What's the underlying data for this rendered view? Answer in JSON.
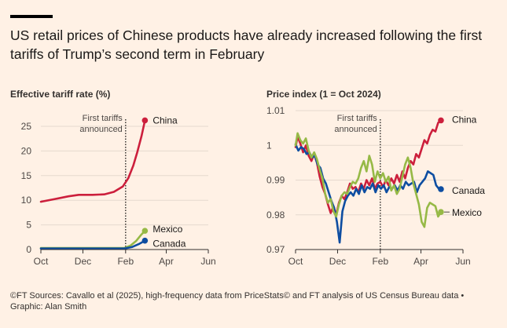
{
  "header": {
    "title": "US retail prices of Chinese products have already increased following the first tariffs of Trump’s second term in February"
  },
  "footer": {
    "source": "©FT Sources: Cavallo et al (2025), high-frequency data from PriceStats© and FT analysis of US Census Bureau data • Graphic: Alan Smith"
  },
  "colors": {
    "China": "#cc1f3c",
    "Mexico": "#96b946",
    "Canada": "#0d4da1",
    "grid": "#e6d9ce",
    "axis": "#33302e"
  },
  "chart_data": [
    {
      "type": "line",
      "title": "Effective tariff rate (%)",
      "x_ticks": [
        "Oct",
        "Dec",
        "Feb",
        "Apr",
        "Jun"
      ],
      "xlim": [
        "2024-10-01",
        "2025-06-01"
      ],
      "ylim": [
        0,
        27
      ],
      "y_ticks": [
        0,
        5,
        10,
        15,
        20,
        25
      ],
      "grid": true,
      "annotation": {
        "text": [
          "First tariffs",
          "announced"
        ],
        "date": "2025-02-01"
      },
      "series": [
        {
          "name": "China",
          "points": [
            [
              "2024-10-01",
              9.7
            ],
            [
              "2024-10-20",
              10.2
            ],
            [
              "2024-11-10",
              10.8
            ],
            [
              "2024-11-25",
              11.1
            ],
            [
              "2024-12-15",
              11.1
            ],
            [
              "2025-01-01",
              11.2
            ],
            [
              "2025-01-15",
              11.7
            ],
            [
              "2025-01-28",
              12.8
            ],
            [
              "2025-02-05",
              14.5
            ],
            [
              "2025-02-12",
              17.0
            ],
            [
              "2025-02-18",
              19.8
            ],
            [
              "2025-02-24",
              23.0
            ],
            [
              "2025-03-01",
              26.2
            ]
          ]
        },
        {
          "name": "Mexico",
          "points": [
            [
              "2024-10-01",
              0.3
            ],
            [
              "2025-01-30",
              0.3
            ],
            [
              "2025-02-08",
              0.8
            ],
            [
              "2025-02-16",
              1.7
            ],
            [
              "2025-02-23",
              2.9
            ],
            [
              "2025-03-01",
              3.8
            ]
          ]
        },
        {
          "name": "Canada",
          "points": [
            [
              "2024-10-01",
              0.2
            ],
            [
              "2025-01-30",
              0.2
            ],
            [
              "2025-02-10",
              0.5
            ],
            [
              "2025-02-20",
              1.1
            ],
            [
              "2025-03-01",
              1.8
            ]
          ]
        }
      ]
    },
    {
      "type": "line",
      "title": "Price index (1 = Oct 2024)",
      "x_ticks": [
        "Oct",
        "Dec",
        "Feb",
        "Apr",
        "Jun"
      ],
      "xlim": [
        "2024-10-01",
        "2025-06-01"
      ],
      "ylim": [
        0.97,
        1.01
      ],
      "y_ticks": [
        "0.97",
        "0.98",
        "0.99",
        "1",
        "1.01"
      ],
      "grid": true,
      "annotation": {
        "text": [
          "First tariffs",
          "announced"
        ],
        "date": "2025-02-01"
      },
      "series": [
        {
          "name": "China",
          "points": [
            [
              "2024-10-01",
              0.9995
            ],
            [
              "2024-10-04",
              1.0025
            ],
            [
              "2024-10-08",
              1.0005
            ],
            [
              "2024-10-12",
              0.998
            ],
            [
              "2024-10-16",
              1.0
            ],
            [
              "2024-10-20",
              0.997
            ],
            [
              "2024-10-24",
              0.9955
            ],
            [
              "2024-10-28",
              0.9975
            ],
            [
              "2024-11-01",
              0.995
            ],
            [
              "2024-11-05",
              0.991
            ],
            [
              "2024-11-09",
              0.988
            ],
            [
              "2024-11-13",
              0.986
            ],
            [
              "2024-11-17",
              0.983
            ],
            [
              "2024-11-21",
              0.9805
            ],
            [
              "2024-11-25",
              0.9825
            ],
            [
              "2024-11-29",
              0.98
            ],
            [
              "2024-12-03",
              0.9835
            ],
            [
              "2024-12-07",
              0.9855
            ],
            [
              "2024-12-11",
              0.9845
            ],
            [
              "2024-12-15",
              0.9865
            ],
            [
              "2024-12-19",
              0.989
            ],
            [
              "2024-12-23",
              0.9875
            ],
            [
              "2024-12-27",
              0.988
            ],
            [
              "2024-12-31",
              0.9865
            ],
            [
              "2025-01-04",
              0.989
            ],
            [
              "2025-01-08",
              0.9875
            ],
            [
              "2025-01-12",
              0.99
            ],
            [
              "2025-01-16",
              0.9885
            ],
            [
              "2025-01-20",
              0.9905
            ],
            [
              "2025-01-24",
              0.9875
            ],
            [
              "2025-01-28",
              0.989
            ],
            [
              "2025-02-01",
              0.9895
            ],
            [
              "2025-02-05",
              0.988
            ],
            [
              "2025-02-09",
              0.99
            ],
            [
              "2025-02-13",
              0.9885
            ],
            [
              "2025-02-17",
              0.9905
            ],
            [
              "2025-02-21",
              0.989
            ],
            [
              "2025-02-25",
              0.9915
            ],
            [
              "2025-03-01",
              0.9895
            ],
            [
              "2025-03-05",
              0.9925
            ],
            [
              "2025-03-09",
              0.9905
            ],
            [
              "2025-03-13",
              0.9935
            ],
            [
              "2025-03-17",
              0.9955
            ],
            [
              "2025-03-21",
              0.9945
            ],
            [
              "2025-03-25",
              0.9975
            ],
            [
              "2025-03-29",
              0.9965
            ],
            [
              "2025-04-02",
              0.999
            ],
            [
              "2025-04-06",
              1.0015
            ],
            [
              "2025-04-10",
              1.0005
            ],
            [
              "2025-04-14",
              1.003
            ],
            [
              "2025-04-18",
              1.0045
            ],
            [
              "2025-04-22",
              1.004
            ],
            [
              "2025-04-26",
              1.0065
            ],
            [
              "2025-04-30",
              1.0072
            ]
          ]
        },
        {
          "name": "Canada",
          "points": [
            [
              "2024-10-01",
              1.0003
            ],
            [
              "2024-10-05",
              0.9985
            ],
            [
              "2024-10-09",
              0.9995
            ],
            [
              "2024-10-13",
              0.999
            ],
            [
              "2024-10-17",
              0.9975
            ],
            [
              "2024-10-21",
              0.998
            ],
            [
              "2024-10-25",
              0.9965
            ],
            [
              "2024-10-29",
              0.997
            ],
            [
              "2024-11-02",
              0.9945
            ],
            [
              "2024-11-06",
              0.9935
            ],
            [
              "2024-11-10",
              0.9905
            ],
            [
              "2024-11-14",
              0.989
            ],
            [
              "2024-11-18",
              0.9865
            ],
            [
              "2024-11-22",
              0.984
            ],
            [
              "2024-11-26",
              0.982
            ],
            [
              "2024-11-30",
              0.978
            ],
            [
              "2024-12-04",
              0.972
            ],
            [
              "2024-12-08",
              0.981
            ],
            [
              "2024-12-12",
              0.984
            ],
            [
              "2024-12-16",
              0.9855
            ],
            [
              "2024-12-20",
              0.9865
            ],
            [
              "2024-12-24",
              0.9855
            ],
            [
              "2024-12-28",
              0.9875
            ],
            [
              "2025-01-01",
              0.986
            ],
            [
              "2025-01-05",
              0.9885
            ],
            [
              "2025-01-09",
              0.9865
            ],
            [
              "2025-01-13",
              0.988
            ],
            [
              "2025-01-17",
              0.9875
            ],
            [
              "2025-01-21",
              0.989
            ],
            [
              "2025-01-25",
              0.9865
            ],
            [
              "2025-01-29",
              0.9885
            ],
            [
              "2025-02-02",
              0.9875
            ],
            [
              "2025-02-06",
              0.9885
            ],
            [
              "2025-02-10",
              0.9865
            ],
            [
              "2025-02-14",
              0.988
            ],
            [
              "2025-02-18",
              0.9875
            ],
            [
              "2025-02-22",
              0.9885
            ],
            [
              "2025-02-26",
              0.987
            ],
            [
              "2025-03-02",
              0.9885
            ],
            [
              "2025-03-06",
              0.9875
            ],
            [
              "2025-03-10",
              0.9895
            ],
            [
              "2025-03-14",
              0.9885
            ],
            [
              "2025-03-18",
              0.989
            ],
            [
              "2025-03-22",
              0.9895
            ],
            [
              "2025-03-26",
              0.9865
            ],
            [
              "2025-03-30",
              0.9885
            ],
            [
              "2025-04-03",
              0.9895
            ],
            [
              "2025-04-07",
              0.9905
            ],
            [
              "2025-04-11",
              0.9925
            ],
            [
              "2025-04-15",
              0.992
            ],
            [
              "2025-04-19",
              0.9915
            ],
            [
              "2025-04-23",
              0.9885
            ],
            [
              "2025-04-27",
              0.9875
            ],
            [
              "2025-04-30",
              0.9874
            ]
          ]
        },
        {
          "name": "Mexico",
          "points": [
            [
              "2024-10-01",
              1.0
            ],
            [
              "2024-10-04",
              1.0035
            ],
            [
              "2024-10-08",
              1.0015
            ],
            [
              "2024-10-12",
              1.0005
            ],
            [
              "2024-10-16",
              1.002
            ],
            [
              "2024-10-20",
              0.9985
            ],
            [
              "2024-10-24",
              0.9965
            ],
            [
              "2024-10-28",
              0.998
            ],
            [
              "2024-11-01",
              0.996
            ],
            [
              "2024-11-05",
              0.993
            ],
            [
              "2024-11-09",
              0.9905
            ],
            [
              "2024-11-13",
              0.986
            ],
            [
              "2024-11-17",
              0.9835
            ],
            [
              "2024-11-21",
              0.9845
            ],
            [
              "2024-11-25",
              0.981
            ],
            [
              "2024-11-29",
              0.9795
            ],
            [
              "2024-12-03",
              0.983
            ],
            [
              "2024-12-07",
              0.9855
            ],
            [
              "2024-12-11",
              0.9865
            ],
            [
              "2024-12-15",
              0.986
            ],
            [
              "2024-12-19",
              0.988
            ],
            [
              "2024-12-23",
              0.9895
            ],
            [
              "2024-12-27",
              0.989
            ],
            [
              "2024-12-31",
              0.9905
            ],
            [
              "2025-01-04",
              0.9935
            ],
            [
              "2025-01-08",
              0.9955
            ],
            [
              "2025-01-12",
              0.9925
            ],
            [
              "2025-01-16",
              0.997
            ],
            [
              "2025-01-20",
              0.9945
            ],
            [
              "2025-01-24",
              0.9895
            ],
            [
              "2025-01-28",
              0.9925
            ],
            [
              "2025-02-01",
              0.9905
            ],
            [
              "2025-02-05",
              0.992
            ],
            [
              "2025-02-09",
              0.9895
            ],
            [
              "2025-02-13",
              0.991
            ],
            [
              "2025-02-17",
              0.987
            ],
            [
              "2025-02-21",
              0.9885
            ],
            [
              "2025-02-25",
              0.986
            ],
            [
              "2025-03-01",
              0.9875
            ],
            [
              "2025-03-05",
              0.991
            ],
            [
              "2025-03-09",
              0.9945
            ],
            [
              "2025-03-13",
              0.9965
            ],
            [
              "2025-03-17",
              0.9935
            ],
            [
              "2025-03-21",
              0.989
            ],
            [
              "2025-03-25",
              0.986
            ],
            [
              "2025-03-29",
              0.983
            ],
            [
              "2025-04-02",
              0.978
            ],
            [
              "2025-04-06",
              0.9765
            ],
            [
              "2025-04-10",
              0.982
            ],
            [
              "2025-04-14",
              0.9835
            ],
            [
              "2025-04-18",
              0.983
            ],
            [
              "2025-04-22",
              0.9825
            ],
            [
              "2025-04-26",
              0.9795
            ],
            [
              "2025-04-30",
              0.9808
            ]
          ]
        }
      ]
    }
  ]
}
